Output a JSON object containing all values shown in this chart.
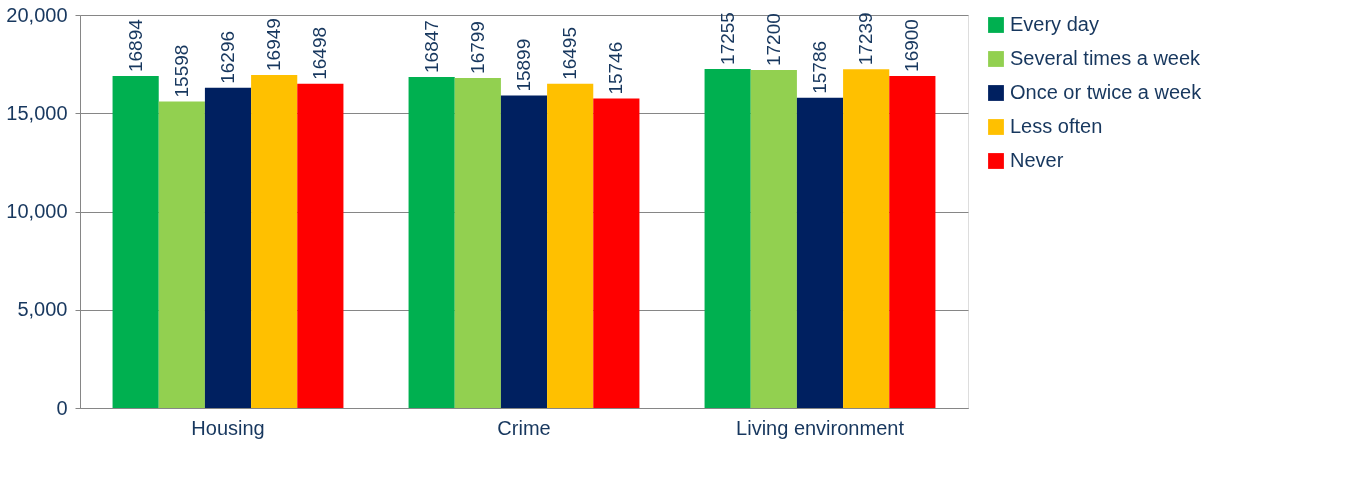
{
  "chart_data": {
    "type": "bar",
    "categories": [
      "Housing",
      "Crime",
      "Living environment"
    ],
    "series": [
      {
        "name": "Every day",
        "color": "#00b050",
        "values": [
          16894,
          16847,
          17255
        ]
      },
      {
        "name": "Several times a week",
        "color": "#92d050",
        "values": [
          15598,
          16799,
          17200
        ]
      },
      {
        "name": "Once or twice a week",
        "color": "#002060",
        "values": [
          16296,
          15899,
          15786
        ]
      },
      {
        "name": "Less often",
        "color": "#ffc000",
        "values": [
          16949,
          16495,
          17239
        ]
      },
      {
        "name": "Never",
        "color": "#ff0000",
        "values": [
          16498,
          15746,
          16900
        ]
      }
    ],
    "ylim": [
      0,
      20000
    ],
    "yticks": [
      {
        "value": 0,
        "label": "0"
      },
      {
        "value": 5000,
        "label": "5,000"
      },
      {
        "value": 10000,
        "label": "10,000"
      },
      {
        "value": 15000,
        "label": "15,000"
      },
      {
        "value": 20000,
        "label": "20,000"
      }
    ],
    "grid": "y",
    "legend": "right",
    "data_labels": true
  }
}
